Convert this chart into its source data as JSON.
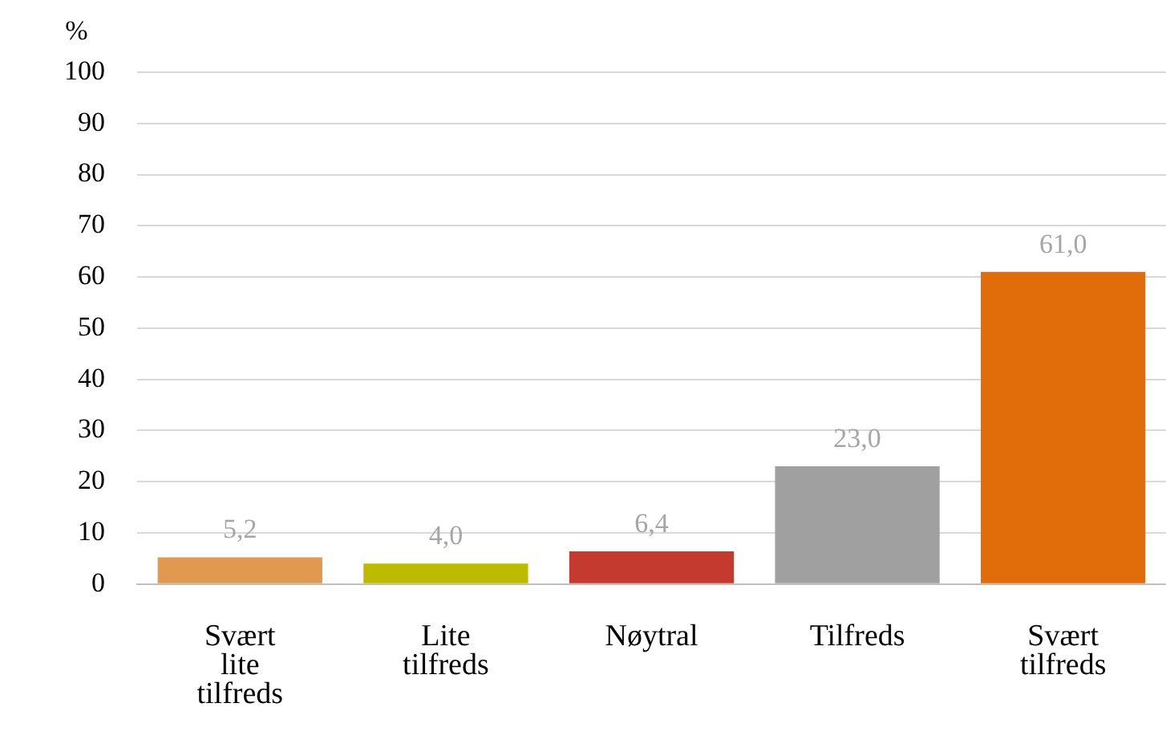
{
  "chart_data": {
    "type": "bar",
    "ylabel": "%",
    "categories": [
      "Svært lite tilfreds",
      "Lite tilfreds",
      "Nøytral",
      "Tilfreds",
      "Svært tilfreds"
    ],
    "values": [
      5.2,
      4.0,
      6.4,
      23.0,
      61.0
    ],
    "value_labels": [
      "5,2",
      "4,0",
      "6,4",
      "23,0",
      "61,0"
    ],
    "colors": [
      "#e0994f",
      "#bdbb00",
      "#c43a2e",
      "#a0a0a0",
      "#e06c0a"
    ],
    "ylim": [
      0,
      100
    ],
    "yticks": [
      0,
      10,
      20,
      30,
      40,
      50,
      60,
      70,
      80,
      90,
      100
    ],
    "grid": "y",
    "legend": false
  }
}
